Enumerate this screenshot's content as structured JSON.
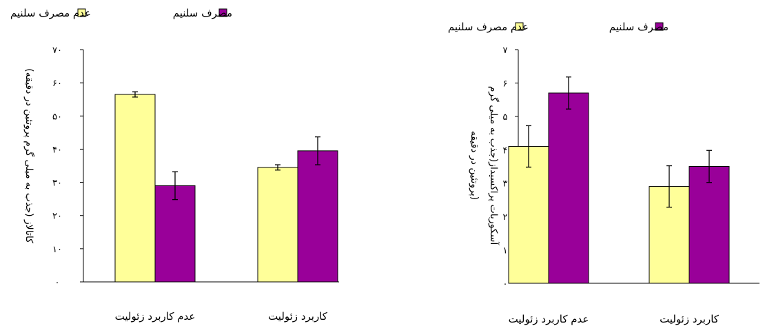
{
  "chart_data": [
    {
      "type": "bar",
      "categories": [
        "کاربرد زئولیت",
        "عدم کاربرد زئولیت"
      ],
      "ylabel_lines": [
        "کاتالاز (جذب به میلی گرم پروتئین در دقیقه)"
      ],
      "ylim": [
        0,
        70
      ],
      "yticks": [
        "۰",
        "۱۰",
        "۲۰",
        "۳۰",
        "۴۰",
        "۵۰",
        "۶۰",
        "۷۰"
      ],
      "legend_position": "top",
      "series": [
        {
          "name": "عدم مصرف سلنیم",
          "color": "#ffff99",
          "values": [
            34.5,
            56.5
          ],
          "errors": [
            0.8,
            0.8
          ]
        },
        {
          "name": "مصرف سلنیم",
          "color": "#990099",
          "values": [
            39.5,
            29.0
          ],
          "errors": [
            4.2,
            4.2
          ]
        }
      ]
    },
    {
      "type": "bar",
      "categories": [
        "کاربرد زئولیت",
        "عدم کاربرد زئولیت"
      ],
      "ylabel_lines": [
        "آسکوربات پراکسیداز(جذب به میلی گرم",
        "پروتئین در دقیقه)"
      ],
      "ylim": [
        0,
        7
      ],
      "yticks": [
        "۰",
        "۱",
        "۲",
        "۳",
        "۴",
        "۵",
        "۶",
        "۷"
      ],
      "legend_position": "top",
      "series": [
        {
          "name": "عدم مصرف سلنیم",
          "color": "#ffff99",
          "values": [
            2.9,
            4.1
          ],
          "errors": [
            0.62,
            0.62
          ]
        },
        {
          "name": "مصرف سلنیم",
          "color": "#990099",
          "values": [
            3.5,
            5.7
          ],
          "errors": [
            0.48,
            0.48
          ]
        }
      ]
    }
  ]
}
